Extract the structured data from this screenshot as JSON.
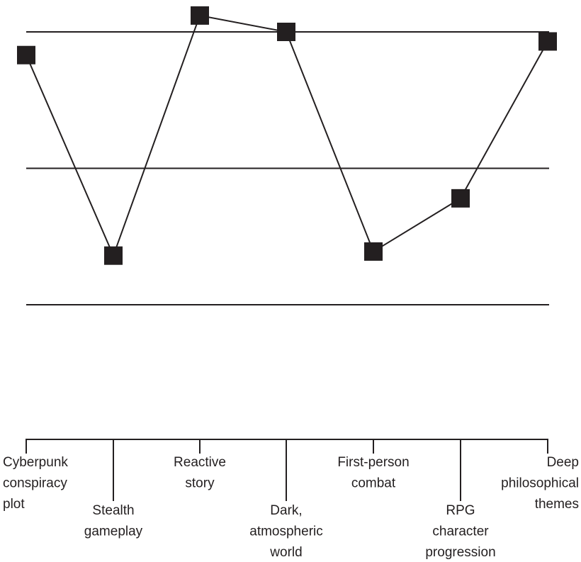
{
  "chart_data": {
    "type": "line",
    "title": "",
    "xlabel": "",
    "ylabel": "",
    "ylim": [
      0,
      2
    ],
    "grid": true,
    "categories": [
      "Cyberpunk conspiracy plot",
      "Stealth gameplay",
      "Reactive story",
      "Dark, atmospheric world",
      "First-person combat",
      "RPG character progression",
      "Deep philosophical themes"
    ],
    "label_lines": [
      [
        "Cyberpunk",
        "conspiracy",
        "plot"
      ],
      [
        "Stealth",
        "gameplay"
      ],
      [
        "Reactive",
        "story"
      ],
      [
        "Dark,",
        "atmospheric",
        "world"
      ],
      [
        "First-person",
        "combat"
      ],
      [
        "RPG",
        "character",
        "progression"
      ],
      [
        "Deep",
        "philosophical",
        "themes"
      ]
    ],
    "values": [
      1.83,
      0.36,
      2.12,
      2.0,
      0.39,
      0.78,
      1.93
    ],
    "colors": {
      "line": "#231f20",
      "marker": "#231f20",
      "gridline": "#231f20"
    }
  }
}
